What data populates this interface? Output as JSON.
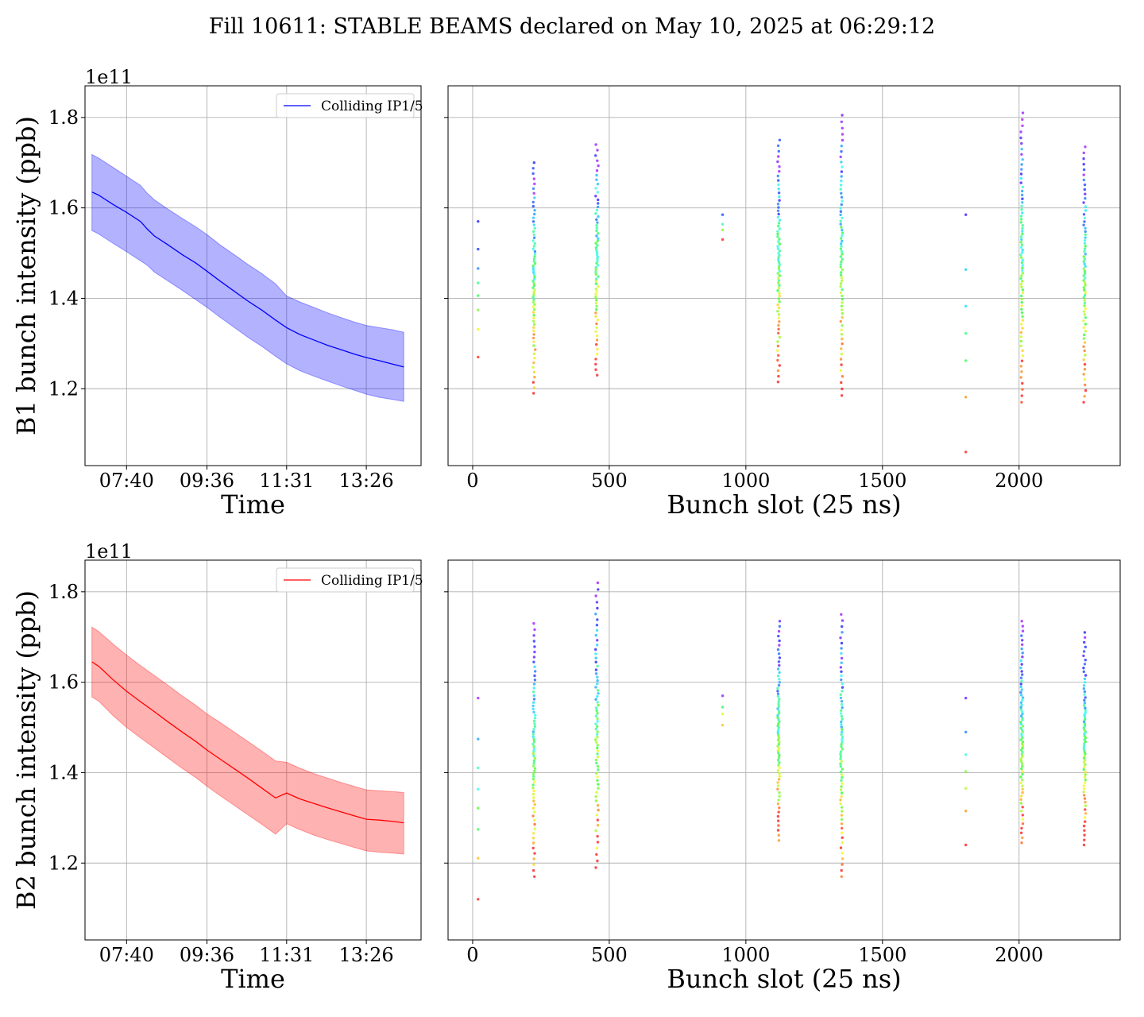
{
  "title": "Fill 10611: STABLE BEAMS declared on May 10, 2025 at 06:29:12",
  "chart_data": [
    {
      "id": "b1-time",
      "type": "line",
      "xlabel": "Time",
      "ylabel": "B1 bunch intensity (ppb)",
      "y_offset_label": "1e11",
      "x_ticks": [
        "07:40",
        "09:36",
        "11:31",
        "13:26"
      ],
      "y_ticks": [
        "1.2",
        "1.4",
        "1.6",
        "1.8"
      ],
      "xlim": [
        "06:40",
        "14:45"
      ],
      "ylim": [
        1.03,
        1.87
      ],
      "grid": true,
      "legend": {
        "position": "top-right",
        "entries": [
          "Colliding IP1/5"
        ]
      },
      "series": [
        {
          "name": "Colliding IP1/5",
          "color": "#0000ff",
          "band_color": "#0000ff",
          "x": [
            "06:50",
            "07:00",
            "07:20",
            "07:40",
            "08:00",
            "08:10",
            "08:20",
            "08:40",
            "09:00",
            "09:20",
            "09:36",
            "09:55",
            "10:15",
            "10:35",
            "10:55",
            "11:15",
            "11:31",
            "11:50",
            "12:10",
            "12:30",
            "12:50",
            "13:10",
            "13:26",
            "13:45",
            "14:05",
            "14:20"
          ],
          "mean": [
            1.635,
            1.628,
            1.608,
            1.59,
            1.57,
            1.553,
            1.538,
            1.518,
            1.497,
            1.478,
            1.46,
            1.438,
            1.416,
            1.394,
            1.374,
            1.352,
            1.335,
            1.32,
            1.308,
            1.296,
            1.286,
            1.276,
            1.269,
            1.262,
            1.254,
            1.248
          ],
          "upper": [
            1.718,
            1.71,
            1.69,
            1.67,
            1.65,
            1.632,
            1.618,
            1.597,
            1.577,
            1.558,
            1.541,
            1.518,
            1.497,
            1.475,
            1.455,
            1.432,
            1.405,
            1.392,
            1.38,
            1.368,
            1.357,
            1.347,
            1.34,
            1.335,
            1.33,
            1.325
          ],
          "lower": [
            1.55,
            1.542,
            1.522,
            1.503,
            1.483,
            1.473,
            1.458,
            1.438,
            1.418,
            1.397,
            1.38,
            1.358,
            1.336,
            1.314,
            1.294,
            1.272,
            1.255,
            1.24,
            1.228,
            1.217,
            1.206,
            1.196,
            1.188,
            1.181,
            1.176,
            1.172
          ]
        }
      ]
    },
    {
      "id": "b1-slot",
      "type": "scatter",
      "xlabel": "Bunch slot (25 ns)",
      "ylabel": "",
      "x_ticks": [
        "0",
        "500",
        "1000",
        "1500",
        "2000"
      ],
      "xlim": [
        -90,
        2370
      ],
      "ylim": [
        1.03,
        1.87
      ],
      "grid": true,
      "groups": [
        {
          "center": 20,
          "width": 0,
          "n": 8,
          "lo": 1.27,
          "hi": 1.57,
          "seed": 11
        },
        {
          "center": 225,
          "width": 8,
          "n": 70,
          "lo": 1.19,
          "hi": 1.7,
          "seed": 12
        },
        {
          "center": 455,
          "width": 10,
          "n": 70,
          "lo": 1.23,
          "hi": 1.74,
          "seed": 13
        },
        {
          "center": 915,
          "width": 0,
          "n": 4,
          "lo": 1.53,
          "hi": 1.585,
          "seed": 14
        },
        {
          "center": 1120,
          "width": 8,
          "n": 72,
          "lo": 1.215,
          "hi": 1.75,
          "seed": 15
        },
        {
          "center": 1350,
          "width": 8,
          "n": 72,
          "lo": 1.185,
          "hi": 1.805,
          "seed": 16
        },
        {
          "center": 1805,
          "width": 0,
          "n": 7,
          "lo": 1.06,
          "hi": 1.585,
          "seed": 17
        },
        {
          "center": 2010,
          "width": 8,
          "n": 75,
          "lo": 1.17,
          "hi": 1.81,
          "seed": 18
        },
        {
          "center": 2240,
          "width": 8,
          "n": 72,
          "lo": 1.17,
          "hi": 1.735,
          "seed": 19
        }
      ]
    },
    {
      "id": "b2-time",
      "type": "line",
      "xlabel": "Time",
      "ylabel": "B2 bunch intensity (ppb)",
      "y_offset_label": "1e11",
      "x_ticks": [
        "07:40",
        "09:36",
        "11:31",
        "13:26"
      ],
      "y_ticks": [
        "1.2",
        "1.4",
        "1.6",
        "1.8"
      ],
      "xlim": [
        "06:40",
        "14:45"
      ],
      "ylim": [
        1.03,
        1.87
      ],
      "grid": true,
      "legend": {
        "position": "top-right",
        "entries": [
          "Colliding IP1/5"
        ]
      },
      "series": [
        {
          "name": "Colliding IP1/5",
          "color": "#ff0000",
          "band_color": "#ff0000",
          "x": [
            "06:50",
            "07:00",
            "07:20",
            "07:40",
            "08:00",
            "08:20",
            "08:40",
            "09:00",
            "09:20",
            "09:36",
            "09:55",
            "10:15",
            "10:35",
            "10:55",
            "11:15",
            "11:31",
            "11:50",
            "12:10",
            "12:30",
            "12:50",
            "13:10",
            "13:26",
            "13:45",
            "14:05",
            "14:20"
          ],
          "mean": [
            1.645,
            1.635,
            1.606,
            1.58,
            1.557,
            1.535,
            1.512,
            1.49,
            1.469,
            1.45,
            1.43,
            1.409,
            1.388,
            1.366,
            1.344,
            1.355,
            1.342,
            1.332,
            1.322,
            1.313,
            1.304,
            1.297,
            1.295,
            1.292,
            1.289
          ],
          "upper": [
            1.722,
            1.712,
            1.685,
            1.66,
            1.637,
            1.615,
            1.593,
            1.57,
            1.549,
            1.53,
            1.511,
            1.49,
            1.469,
            1.448,
            1.426,
            1.423,
            1.41,
            1.398,
            1.388,
            1.378,
            1.369,
            1.362,
            1.36,
            1.358,
            1.356
          ],
          "lower": [
            1.567,
            1.558,
            1.527,
            1.5,
            1.477,
            1.455,
            1.432,
            1.41,
            1.389,
            1.37,
            1.349,
            1.328,
            1.307,
            1.286,
            1.264,
            1.287,
            1.274,
            1.262,
            1.252,
            1.243,
            1.234,
            1.227,
            1.224,
            1.222,
            1.22
          ]
        }
      ]
    },
    {
      "id": "b2-slot",
      "type": "scatter",
      "xlabel": "Bunch slot (25 ns)",
      "ylabel": "",
      "x_ticks": [
        "0",
        "500",
        "1000",
        "1500",
        "2000"
      ],
      "xlim": [
        -90,
        2370
      ],
      "ylim": [
        1.03,
        1.87
      ],
      "grid": true,
      "groups": [
        {
          "center": 20,
          "width": 0,
          "n": 8,
          "lo": 1.12,
          "hi": 1.565,
          "seed": 21
        },
        {
          "center": 225,
          "width": 8,
          "n": 70,
          "lo": 1.17,
          "hi": 1.73,
          "seed": 22
        },
        {
          "center": 455,
          "width": 10,
          "n": 72,
          "lo": 1.19,
          "hi": 1.82,
          "seed": 23
        },
        {
          "center": 915,
          "width": 0,
          "n": 4,
          "lo": 1.505,
          "hi": 1.57,
          "seed": 24
        },
        {
          "center": 1120,
          "width": 8,
          "n": 72,
          "lo": 1.25,
          "hi": 1.735,
          "seed": 25
        },
        {
          "center": 1350,
          "width": 8,
          "n": 72,
          "lo": 1.17,
          "hi": 1.75,
          "seed": 26
        },
        {
          "center": 1805,
          "width": 0,
          "n": 7,
          "lo": 1.24,
          "hi": 1.565,
          "seed": 27
        },
        {
          "center": 2010,
          "width": 8,
          "n": 75,
          "lo": 1.245,
          "hi": 1.735,
          "seed": 28
        },
        {
          "center": 2240,
          "width": 8,
          "n": 72,
          "lo": 1.24,
          "hi": 1.71,
          "seed": 29
        }
      ]
    }
  ]
}
